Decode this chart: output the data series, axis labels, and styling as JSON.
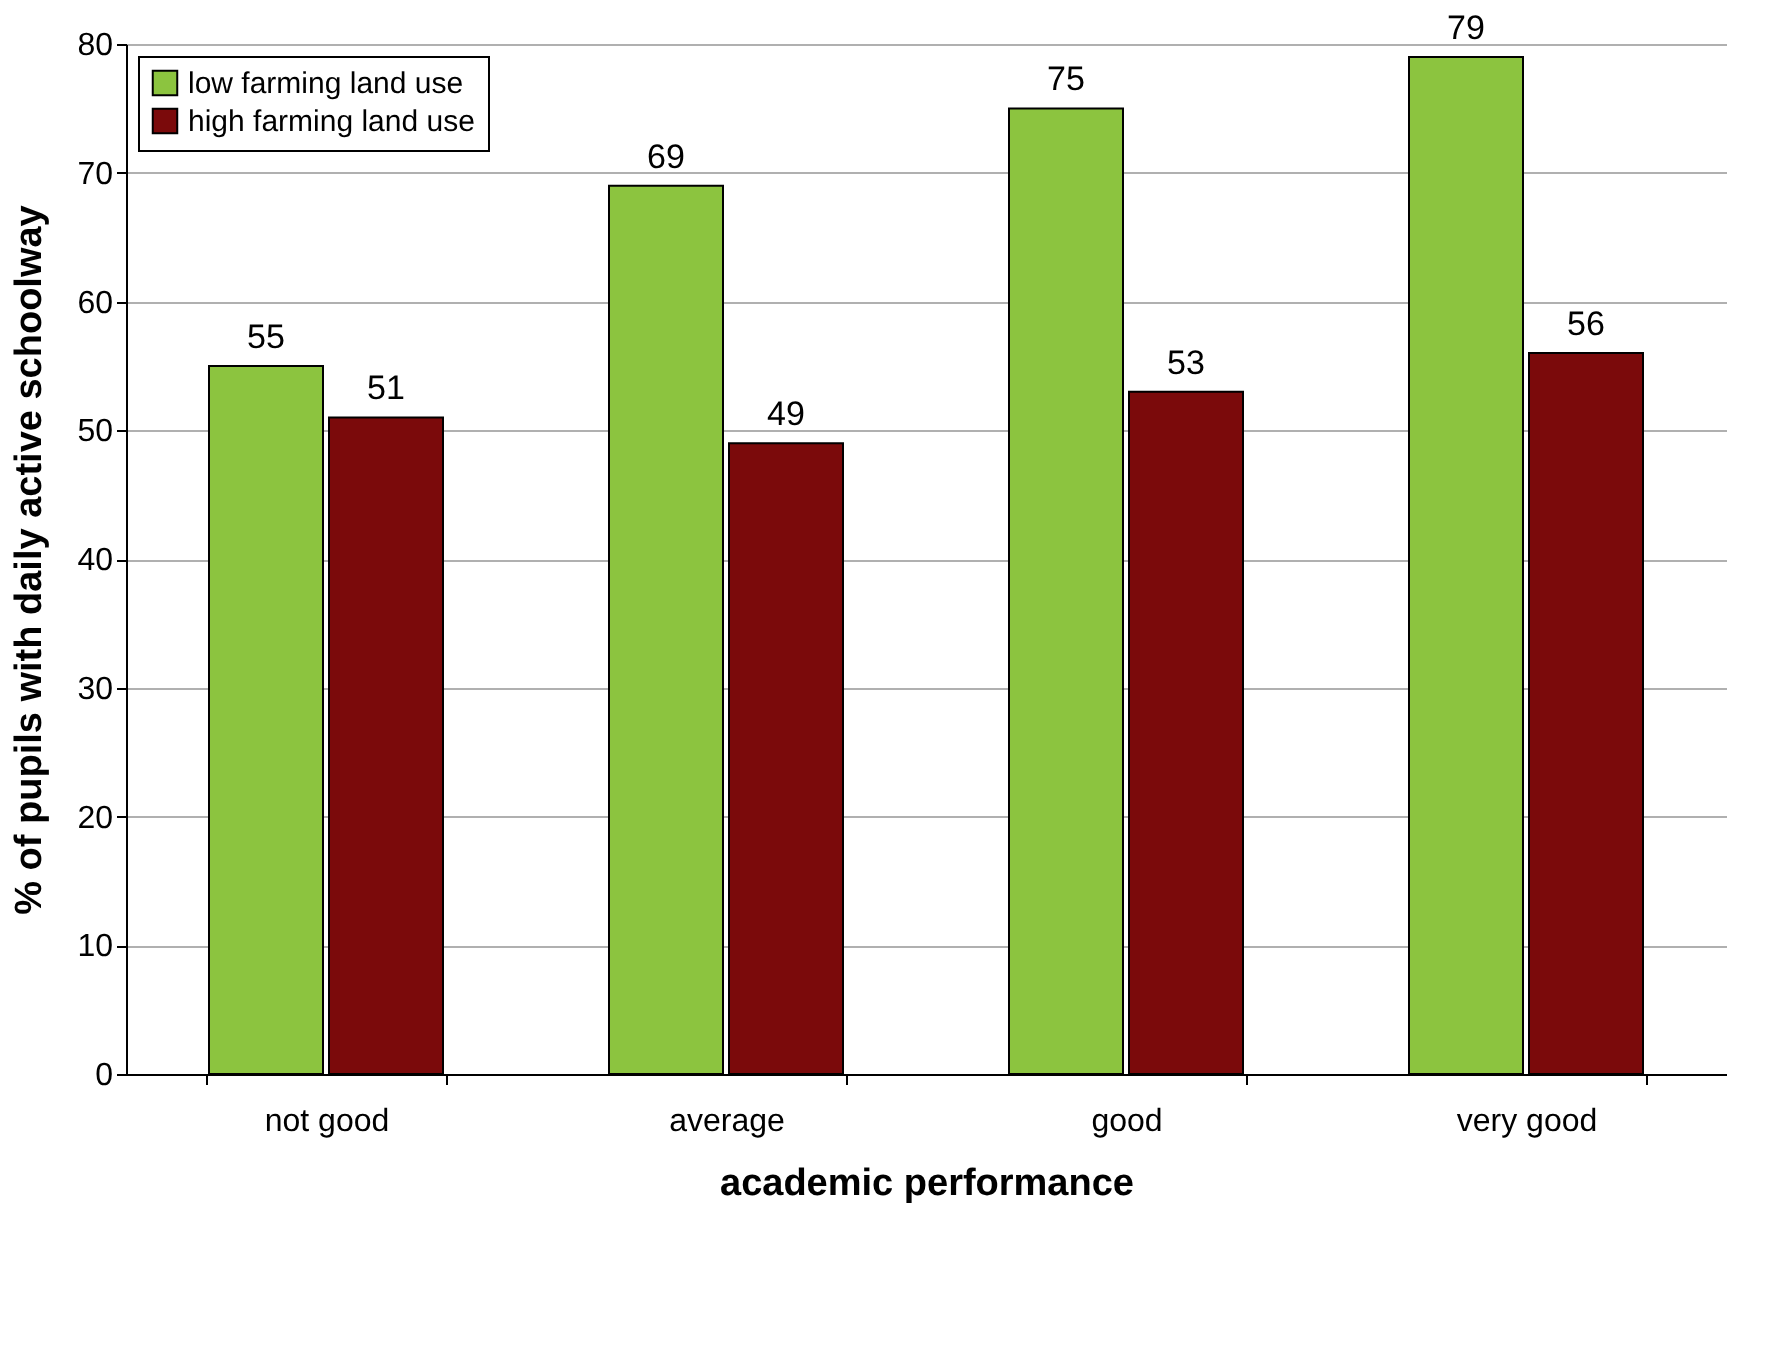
{
  "chart_data": {
    "type": "bar",
    "xlabel": "academic performance",
    "ylabel": "% of pupils with daily active schoolway",
    "categories": [
      "not good",
      "average",
      "good",
      "very good"
    ],
    "series": [
      {
        "name": "low farming land use",
        "color": "#8cc43f",
        "values": [
          55,
          69,
          75,
          79
        ]
      },
      {
        "name": "high farming land use",
        "color": "#7b0a0b",
        "values": [
          51,
          49,
          53,
          56
        ]
      }
    ],
    "ylim": [
      0,
      80
    ],
    "yticks": [
      0,
      10,
      20,
      30,
      40,
      50,
      60,
      70,
      80
    ],
    "grid": "y",
    "legend": "top left",
    "data_labels": true
  }
}
